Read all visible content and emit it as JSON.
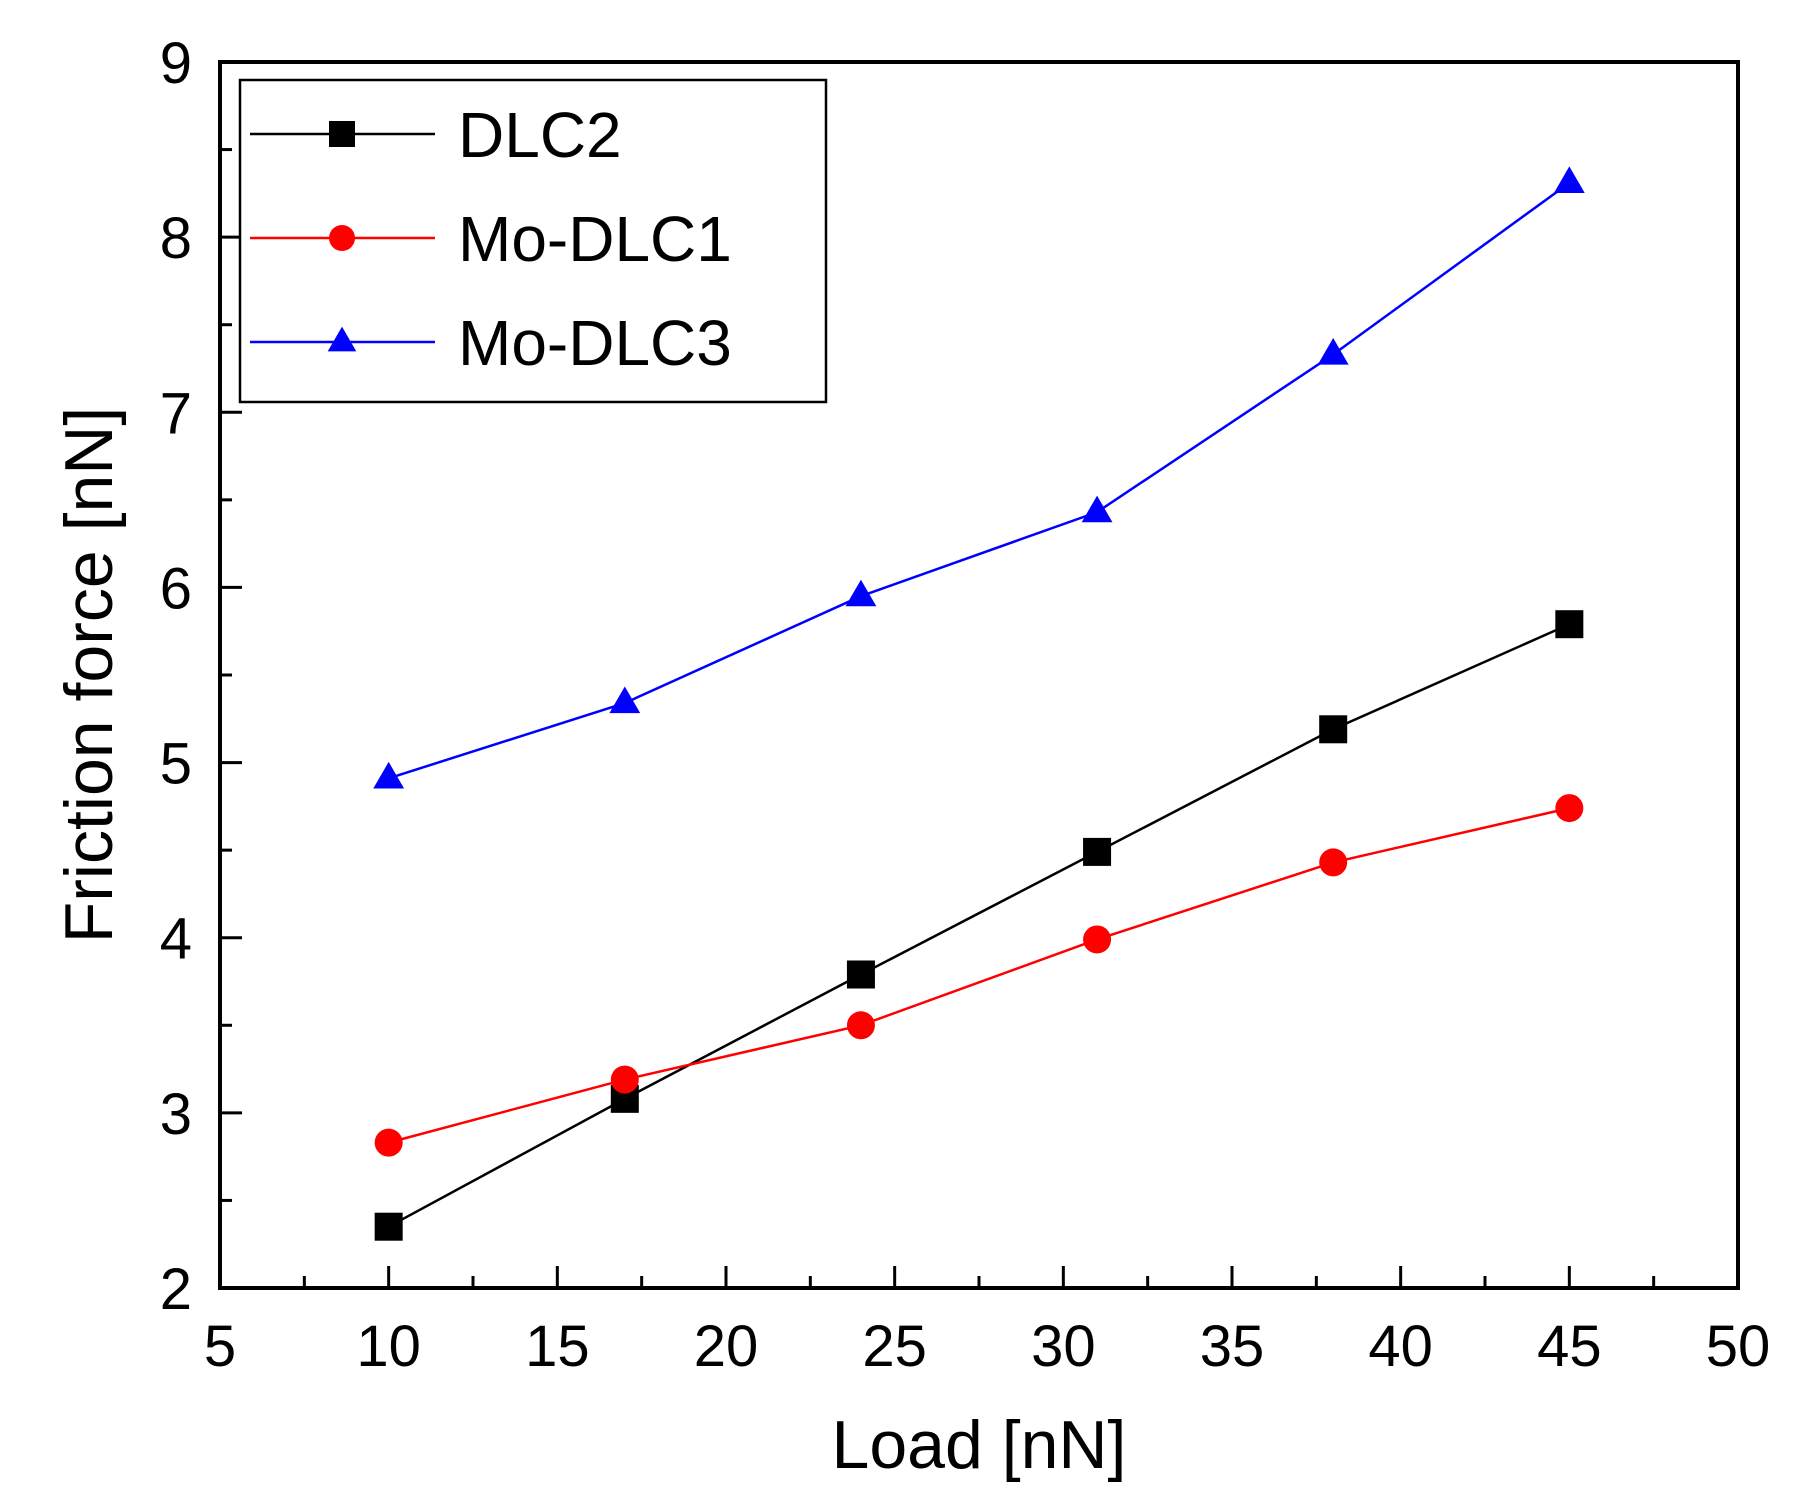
{
  "chart_data": {
    "type": "line",
    "title": "",
    "xlabel": "Load [nN]",
    "ylabel": "Friction force [nN]",
    "xlim": [
      5,
      50
    ],
    "ylim": [
      2,
      9
    ],
    "xticks": [
      5,
      10,
      15,
      20,
      25,
      30,
      35,
      40,
      45,
      50
    ],
    "yticks": [
      2,
      3,
      4,
      5,
      6,
      7,
      8,
      9
    ],
    "grid": false,
    "legend_position": "top-left",
    "series": [
      {
        "name": "DLC2",
        "color": "#000000",
        "marker": "square",
        "x": [
          10,
          17,
          24,
          31,
          38,
          45
        ],
        "y": [
          2.35,
          3.08,
          3.79,
          4.49,
          5.19,
          5.79
        ]
      },
      {
        "name": "Mo-DLC1",
        "color": "#ff0000",
        "marker": "circle",
        "x": [
          10,
          17,
          24,
          31,
          38,
          45
        ],
        "y": [
          2.83,
          3.19,
          3.5,
          3.99,
          4.43,
          4.74
        ]
      },
      {
        "name": "Mo-DLC3",
        "color": "#0000ff",
        "marker": "triangle",
        "x": [
          10,
          17,
          24,
          31,
          38,
          45
        ],
        "y": [
          4.91,
          5.34,
          5.95,
          6.43,
          7.33,
          8.31
        ]
      }
    ]
  }
}
